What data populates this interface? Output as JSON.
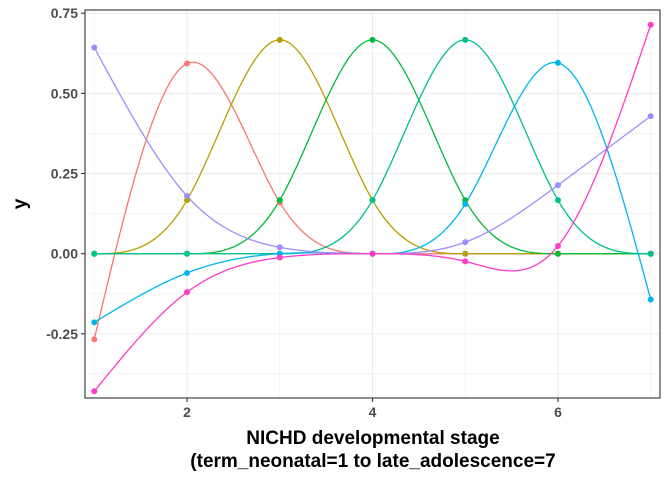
{
  "chart_data": {
    "type": "line",
    "xlabel_lines": [
      "NICHD developmental stage",
      "(term_neonatal=1 to late_adolescence=7"
    ],
    "ylabel": "y",
    "xlim": [
      0.9,
      7.1
    ],
    "ylim": [
      -0.45,
      0.76
    ],
    "x_ticks": [
      2,
      4,
      6
    ],
    "x_tick_labels": [
      "2",
      "4",
      "6"
    ],
    "y_ticks": [
      -0.25,
      0,
      0.25,
      0.5,
      0.75
    ],
    "y_tick_labels": [
      "-0.25",
      "0.00",
      "0.25",
      "0.50",
      "0.75"
    ],
    "grid": true,
    "legend": "none",
    "x": [
      1,
      2,
      3,
      4,
      5,
      6,
      7
    ],
    "series": [
      {
        "color": "#F8766D",
        "values": [
          -0.267,
          0.593,
          0.16,
          0.0,
          0.0,
          0.0,
          0.0
        ]
      },
      {
        "color": "#B79F00",
        "values": [
          0.0,
          0.167,
          0.667,
          0.167,
          0.0,
          0.0,
          0.0
        ]
      },
      {
        "color": "#00BA38",
        "values": [
          0.0,
          0.0,
          0.167,
          0.667,
          0.167,
          0.0,
          0.0
        ]
      },
      {
        "color": "#00C08B",
        "values": [
          0.0,
          0.0,
          0.0,
          0.167,
          0.667,
          0.167,
          0.0
        ]
      },
      {
        "color": "#00B4F0",
        "values": [
          -0.214,
          -0.06,
          0.0,
          0.0,
          0.155,
          0.595,
          -0.143
        ]
      },
      {
        "color": "#9C8DFF",
        "values": [
          0.643,
          0.18,
          0.02,
          0.0,
          0.036,
          0.214,
          0.429
        ]
      },
      {
        "color": "#FF3BC8",
        "values": [
          -0.429,
          -0.12,
          -0.012,
          0.0,
          -0.024,
          0.024,
          0.714
        ]
      }
    ]
  }
}
